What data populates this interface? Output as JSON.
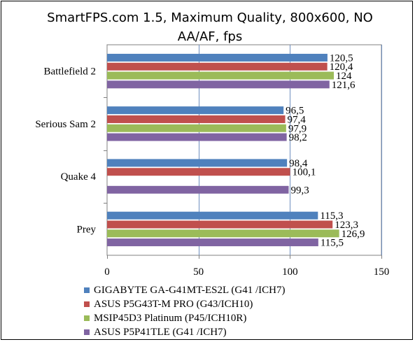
{
  "chart_data": {
    "type": "bar",
    "orientation": "horizontal",
    "title": "SmartFPS.com 1.5, Maximum Quality, 800x600, NO AA/AF, fps",
    "categories": [
      "Battlefield 2",
      "Serious Sam 2",
      "Quake 4",
      "Prey"
    ],
    "series": [
      {
        "name": "GIGABYTE GA-G41MT-ES2L (G41 /ICH7)",
        "color": "#4f81bd",
        "values": [
          120.5,
          96.5,
          98.4,
          115.3
        ],
        "labels": [
          "120,5",
          "96,5",
          "98,4",
          "115,3"
        ]
      },
      {
        "name": "ASUS P5G43T-M PRO (G43/ICH10)",
        "color": "#c0504d",
        "values": [
          120.4,
          97.4,
          100.1,
          123.3
        ],
        "labels": [
          "120,4",
          "97,4",
          "100,1",
          "123,3"
        ]
      },
      {
        "name": "MSIP45D3 Platinum (P45/ICH10R)",
        "color": "#9bbb59",
        "values": [
          124,
          97.9,
          null,
          126.9
        ],
        "labels": [
          "124",
          "97,9",
          "",
          "126,9"
        ]
      },
      {
        "name": "ASUS P5P41TLE (G41 /ICH7)",
        "color": "#8064a2",
        "values": [
          121.6,
          98.2,
          99.3,
          115.5
        ],
        "labels": [
          "121,6",
          "98,2",
          "99,3",
          "115,5"
        ]
      }
    ],
    "xlim": [
      0,
      150
    ],
    "ticks": [
      0,
      50,
      100,
      150
    ],
    "grid": true,
    "legend_position": "bottom"
  }
}
